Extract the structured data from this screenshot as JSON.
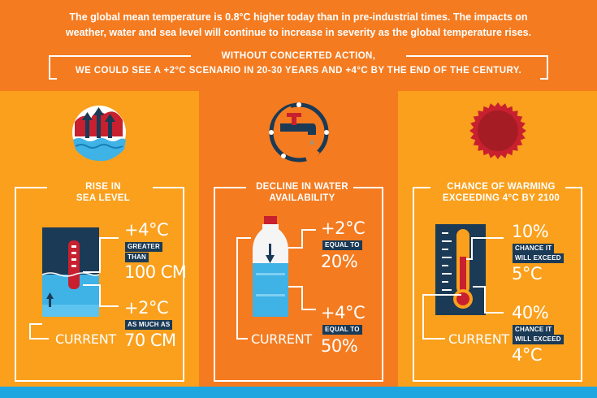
{
  "header": {
    "intro_line1": "The global mean temperature is 0.8°C higher today than in pre-industrial times. The impacts on",
    "intro_line2": "weather, water and sea level will continue to increase in severity as the global temperature rises.",
    "banner_line1": "WITHOUT CONCERTED ACTION,",
    "banner_line2": "WE COULD SEE A +2°C SCENARIO IN 20-30 YEARS AND +4°C BY THE END OF THE CENTURY."
  },
  "colors": {
    "orange_dark": "#f47b20",
    "orange_light": "#faa01c",
    "navy": "#1a3a56",
    "water_blue": "#3fb2e6",
    "red": "#c8202f"
  },
  "sea": {
    "title_line1": "RISE IN",
    "title_line2": "SEA LEVEL",
    "top_value": "+4°C",
    "top_tag_line1": "GREATER",
    "top_tag_line2": "THAN",
    "top_amount": "100 CM",
    "bottom_value": "+2°C",
    "bottom_tag": "AS MUCH AS",
    "bottom_amount": "70 CM",
    "current": "CURRENT",
    "icon": "wave-arrows-icon"
  },
  "water": {
    "title_line1": "DECLINE IN WATER",
    "title_line2": "AVAILABILITY",
    "top_value": "+2°C",
    "top_tag": "EQUAL TO",
    "top_amount": "20%",
    "bottom_value": "+4°C",
    "bottom_tag": "EQUAL TO",
    "bottom_amount": "50%",
    "current": "CURRENT",
    "icon": "faucet-icon"
  },
  "warming": {
    "title_line1": "CHANCE OF WARMING",
    "title_line2": "EXCEEDING 4°C BY 2100",
    "top_value": "10%",
    "top_tag_line1": "CHANCE IT",
    "top_tag_line2": "WILL EXCEED",
    "top_amount": "5°C",
    "bottom_value": "40%",
    "bottom_tag_line1": "CHANCE IT",
    "bottom_tag_line2": "WILL EXCEED",
    "bottom_amount": "4°C",
    "current": "CURRENT",
    "icon": "sun-icon"
  }
}
